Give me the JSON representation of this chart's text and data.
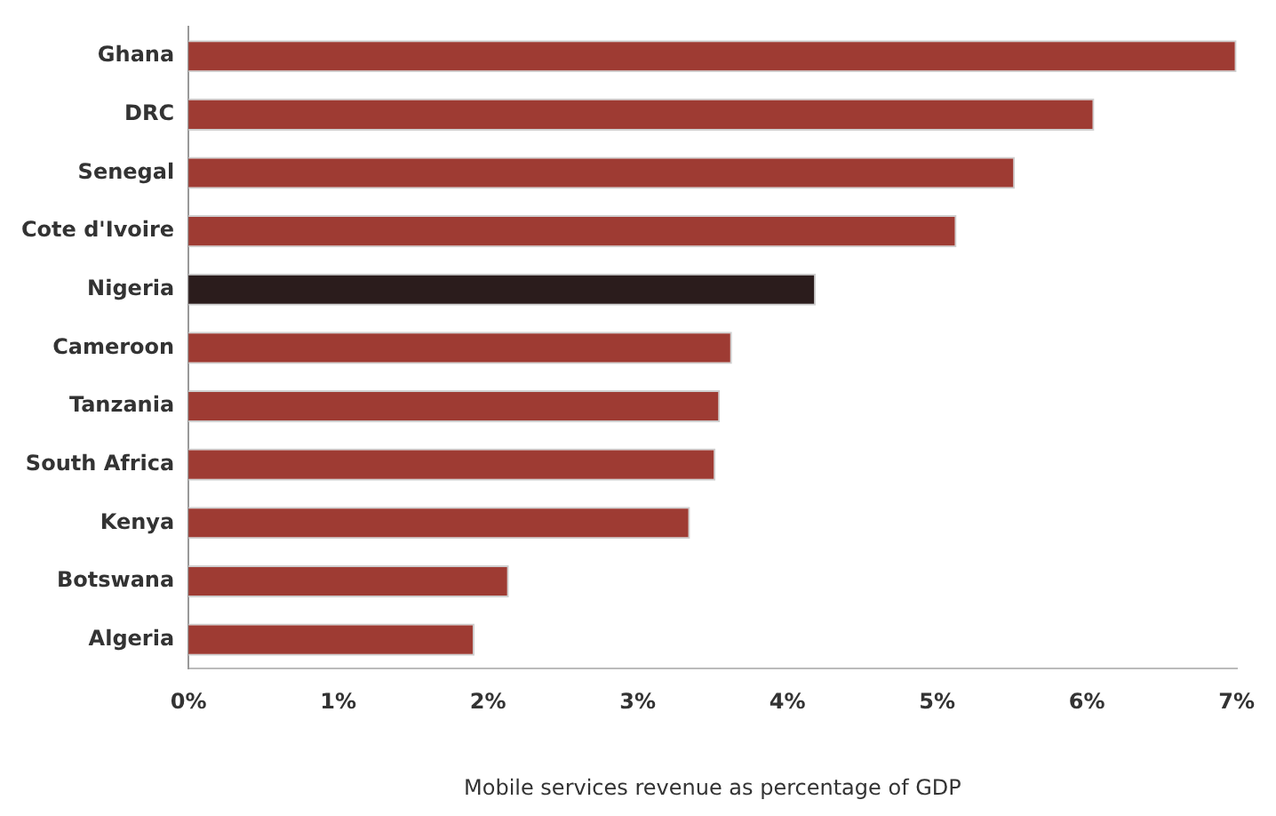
{
  "chart_data": {
    "type": "bar",
    "orientation": "horizontal",
    "xlabel": "Mobile services revenue as percentage of GDP",
    "categories": [
      "Ghana",
      "DRC",
      "Senegal",
      "Cote d'Ivoire",
      "Nigeria",
      "Cameroon",
      "Tanzania",
      "South Africa",
      "Kenya",
      "Botswana",
      "Algeria"
    ],
    "values": [
      7.0,
      6.05,
      5.52,
      5.13,
      4.19,
      3.63,
      3.55,
      3.52,
      3.35,
      2.14,
      1.91
    ],
    "colors": [
      "#9e3b33",
      "#9e3b33",
      "#9e3b33",
      "#9e3b33",
      "#2b1c1c",
      "#9e3b33",
      "#9e3b33",
      "#9e3b33",
      "#9e3b33",
      "#9e3b33",
      "#9e3b33"
    ],
    "xlim": [
      0,
      7
    ],
    "xticks": [
      {
        "value": 0,
        "label": "0%"
      },
      {
        "value": 1,
        "label": "1%"
      },
      {
        "value": 2,
        "label": "2%"
      },
      {
        "value": 3,
        "label": "3%"
      },
      {
        "value": 4,
        "label": "4%"
      },
      {
        "value": 5,
        "label": "5%"
      },
      {
        "value": 6,
        "label": "6%"
      },
      {
        "value": 7,
        "label": "7%"
      }
    ],
    "grid": false,
    "legend": false
  }
}
